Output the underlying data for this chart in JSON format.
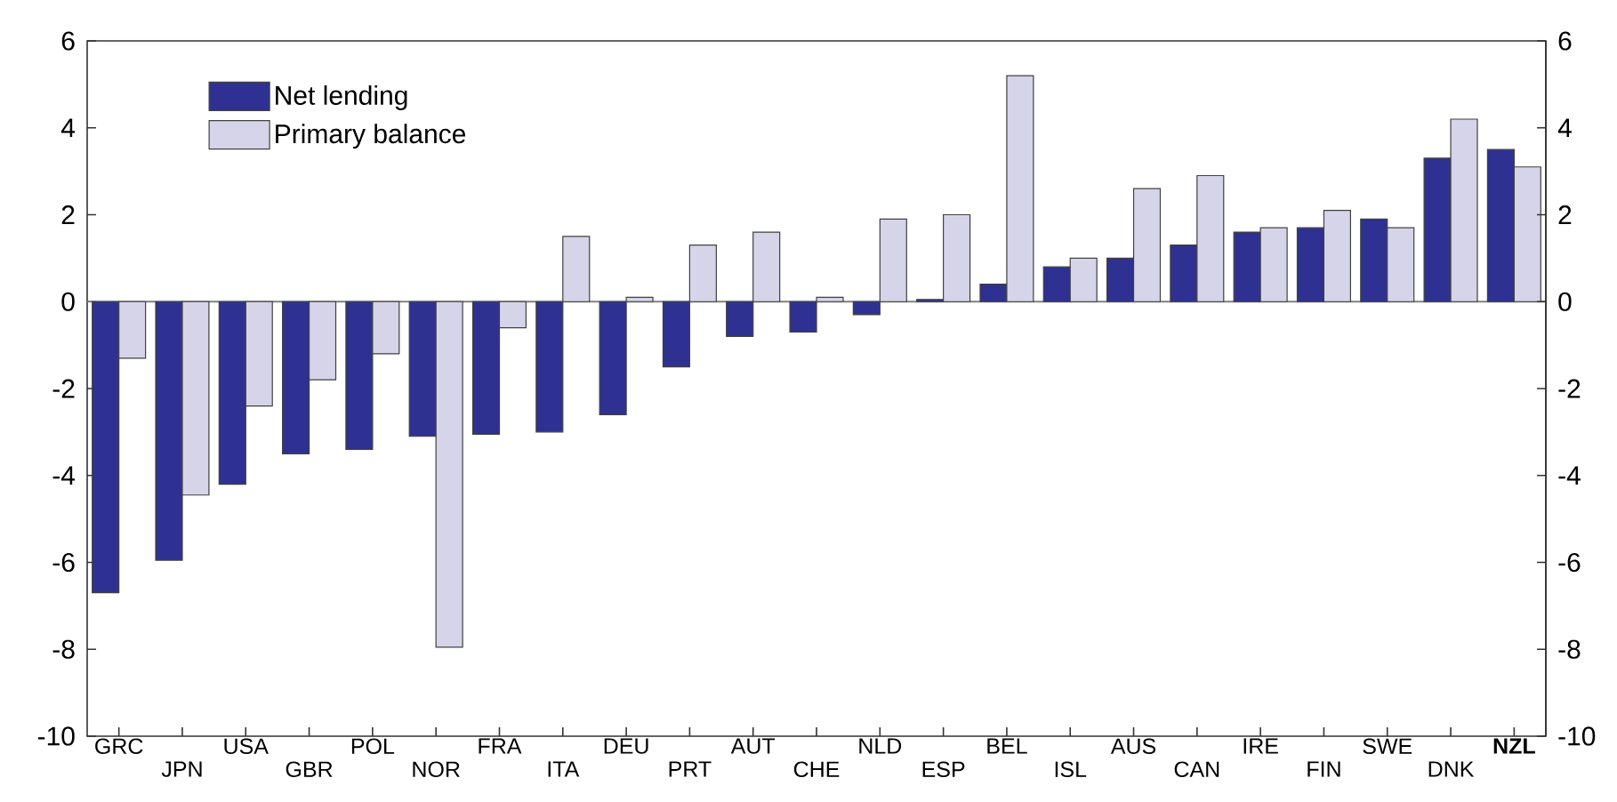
{
  "chart_data": {
    "type": "bar",
    "categories": [
      "GRC",
      "JPN",
      "USA",
      "GBR",
      "POL",
      "NOR",
      "FRA",
      "ITA",
      "DEU",
      "PRT",
      "AUT",
      "CHE",
      "NLD",
      "ESP",
      "BEL",
      "ISL",
      "AUS",
      "CAN",
      "IRE",
      "FIN",
      "SWE",
      "DNK",
      "**NZL**"
    ],
    "series": [
      {
        "name": "Net lending",
        "color": "#2e3192",
        "values": [
          -6.7,
          -5.95,
          -4.2,
          -3.5,
          -3.4,
          -3.1,
          -3.05,
          -3.0,
          -2.6,
          -1.5,
          -0.8,
          -0.7,
          -0.3,
          0.05,
          0.4,
          0.8,
          1.0,
          1.3,
          1.6,
          1.7,
          1.9,
          3.3,
          3.5
        ]
      },
      {
        "name": "Primary balance",
        "color": "#d6d4e9",
        "values": [
          -1.3,
          -4.45,
          -2.4,
          -1.8,
          -1.2,
          -7.95,
          -0.6,
          1.5,
          0.1,
          1.3,
          1.6,
          0.1,
          1.9,
          2.0,
          5.2,
          1.0,
          2.6,
          2.9,
          1.7,
          2.1,
          1.7,
          4.2,
          3.1
        ]
      }
    ],
    "ylim": [
      -10,
      6
    ],
    "yticks": [
      -10,
      -8,
      -6,
      -4,
      -2,
      0,
      2,
      4,
      6
    ],
    "y2lim": [
      -10,
      6
    ],
    "y2ticks": [
      -10,
      -8,
      -6,
      -4,
      -2,
      0,
      2,
      4,
      6
    ],
    "legend": "top left",
    "ref_lines": [
      {
        "axis": "y",
        "value": 0,
        "color": "#808080"
      }
    ]
  }
}
